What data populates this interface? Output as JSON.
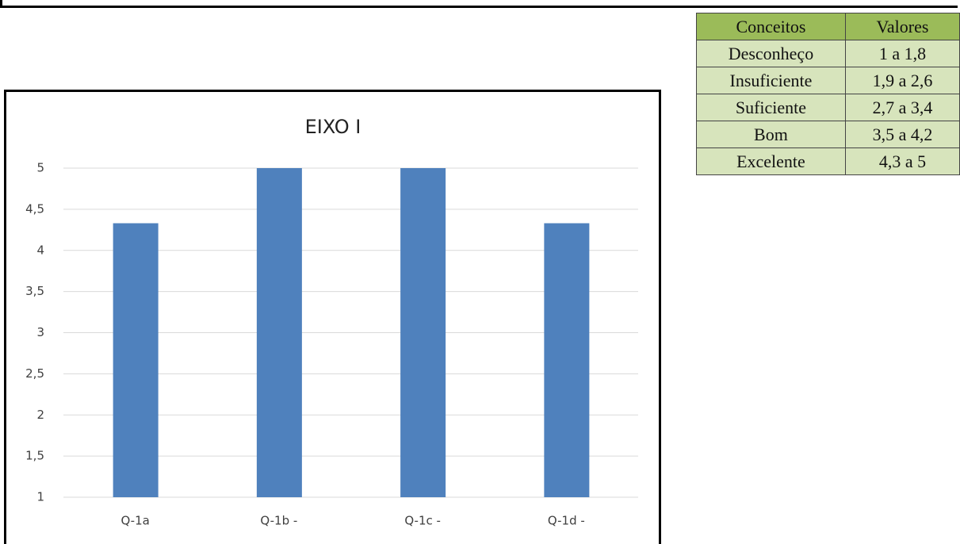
{
  "chart_data": {
    "type": "bar",
    "title": "EIXO I",
    "categories": [
      "Q-1a",
      "Q-1b -",
      "Q-1c -",
      "Q-1d -"
    ],
    "values": [
      4.33,
      5,
      5,
      4.33
    ],
    "color": "#4f81bd",
    "ylim": [
      1,
      5
    ],
    "yticks": [
      1,
      {
        "value": 1.5,
        "label": "1,5"
      },
      2,
      {
        "value": 2.5,
        "label": "2,5"
      },
      3,
      {
        "value": 3.5,
        "label": "3,5"
      },
      4,
      {
        "value": 4.5,
        "label": "4,5"
      },
      5
    ],
    "grid": true
  },
  "table": {
    "header": [
      "Conceitos",
      "Valores"
    ],
    "rows": [
      [
        "Desconheço",
        "1 a 1,8"
      ],
      [
        "Insuficiente",
        "1,9 a 2,6"
      ],
      [
        "Suficiente",
        "2,7 a 3,4"
      ],
      [
        "Bom",
        "3,5 a 4,2"
      ],
      [
        "Excelente",
        "4,3 a 5"
      ]
    ]
  }
}
